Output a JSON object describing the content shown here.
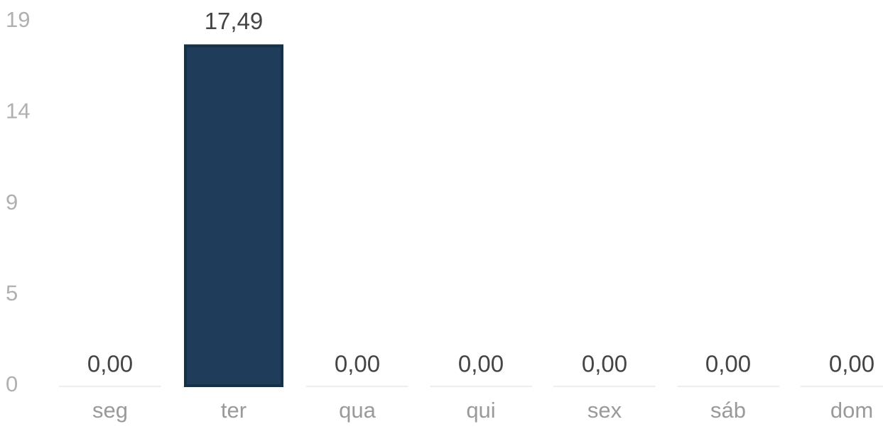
{
  "chart_data": {
    "type": "bar",
    "categories": [
      "seg",
      "ter",
      "qua",
      "qui",
      "sex",
      "sáb",
      "dom"
    ],
    "values": [
      0,
      17.49,
      0,
      0,
      0,
      0,
      0
    ],
    "value_labels": [
      "0,00",
      "17,49",
      "0,00",
      "0,00",
      "0,00",
      "0,00",
      "0,00"
    ],
    "color": "#1f3d5a",
    "ylim": [
      0,
      18.75
    ],
    "yticks": [
      0,
      {
        "value": 4.69,
        "label": "5"
      },
      {
        "value": 9.37,
        "label": "9"
      },
      {
        "value": 14.06,
        "label": "14"
      },
      {
        "value": 18.75,
        "label": "19"
      }
    ],
    "grid": false
  }
}
